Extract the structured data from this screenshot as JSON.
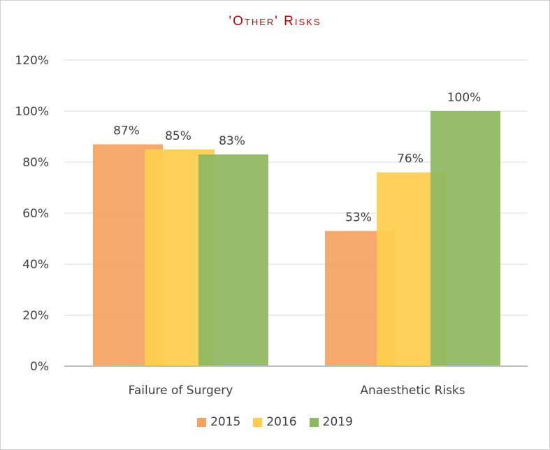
{
  "chart_data": {
    "type": "bar",
    "title": "'Other' Risks",
    "categories": [
      "Failure  of Surgery",
      "Anaesthetic  Risks"
    ],
    "series": [
      {
        "name": "2015",
        "values": [
          87,
          53
        ],
        "color": "#f4a261"
      },
      {
        "name": "2016",
        "values": [
          85,
          76
        ],
        "color": "#ffc000"
      },
      {
        "name": "2019",
        "values": [
          83,
          100
        ],
        "color": "#8db860"
      }
    ],
    "data_labels": [
      [
        "87%",
        "85%",
        "83%"
      ],
      [
        "53%",
        "76%",
        "100%"
      ]
    ],
    "ylim": [
      0,
      120
    ],
    "yticks": [
      "0%",
      "20%",
      "40%",
      "60%",
      "80%",
      "100%",
      "120%"
    ],
    "grid": true,
    "legend": "bottom",
    "bar_style": "overlapping"
  }
}
